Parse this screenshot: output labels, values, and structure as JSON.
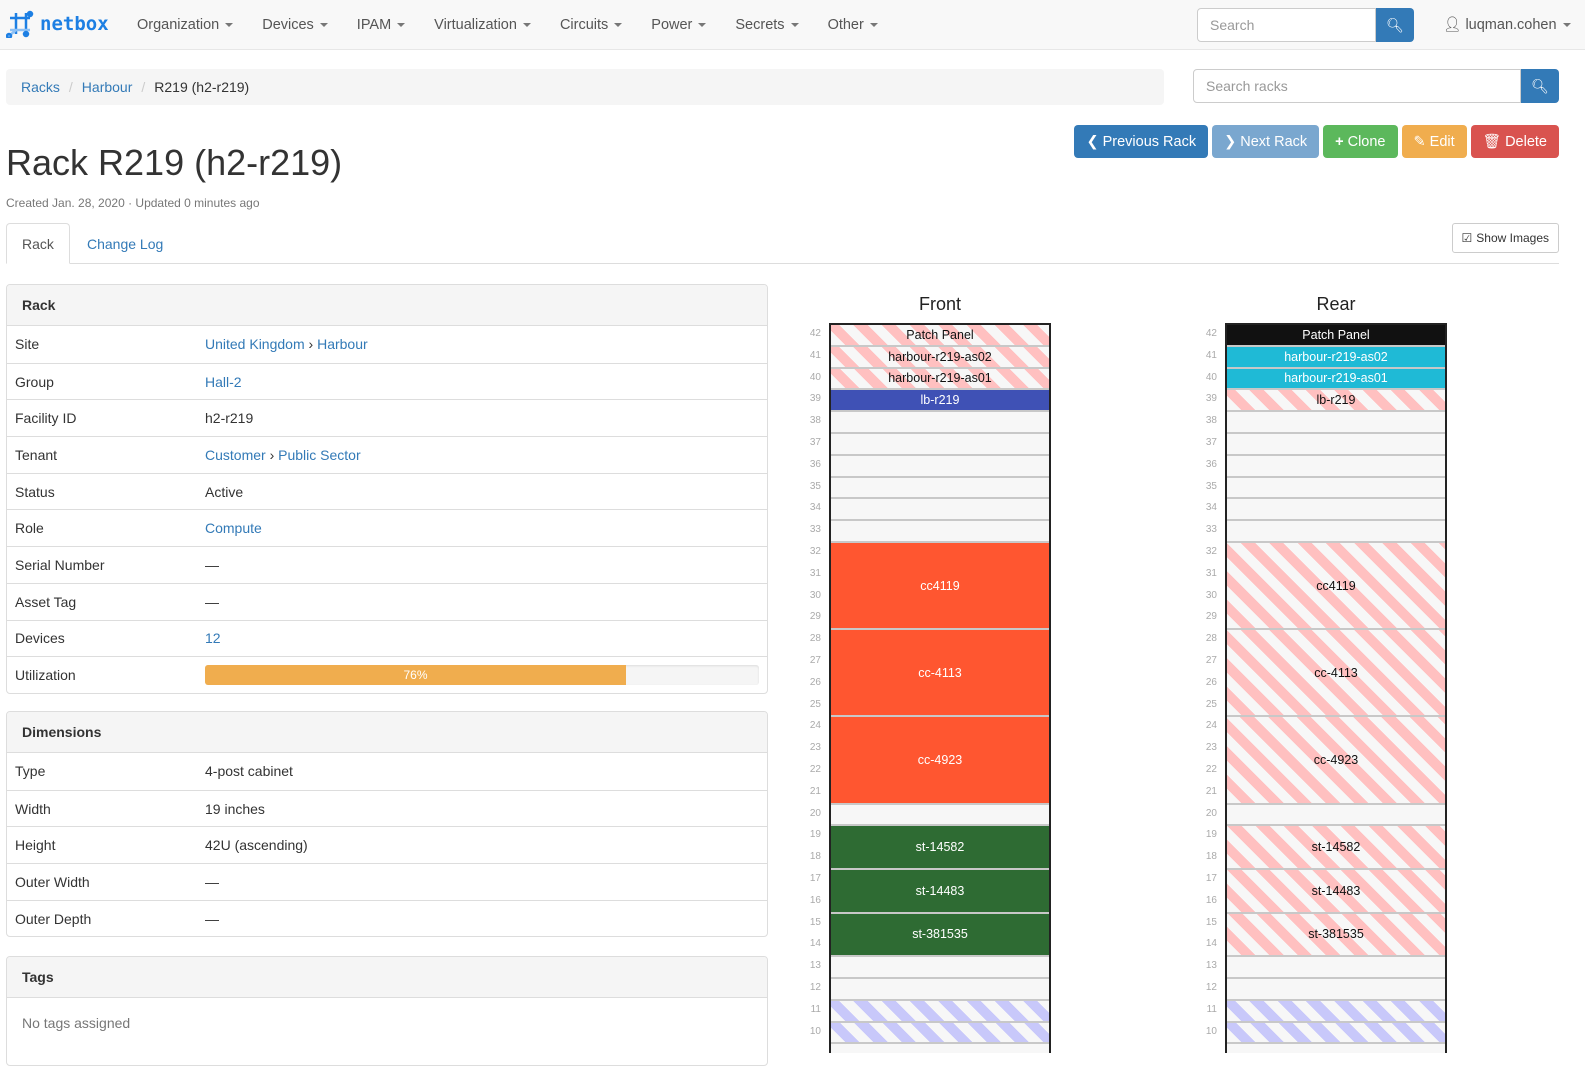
{
  "nav": {
    "brand": "netbox",
    "menu": [
      "Organization",
      "Devices",
      "IPAM",
      "Virtualization",
      "Circuits",
      "Power",
      "Secrets",
      "Other"
    ],
    "search_placeholder": "Search",
    "user": "luqman.cohen"
  },
  "breadcrumb": [
    "Racks",
    "Harbour",
    "R219 (h2-r219)"
  ],
  "rack_search_placeholder": "Search racks",
  "title": "Rack R219 (h2-r219)",
  "meta": "Created Jan. 28, 2020 · Updated 0 minutes ago",
  "buttons": {
    "prev": "Previous Rack",
    "next": "Next Rack",
    "clone": "Clone",
    "edit": "Edit",
    "delete": "Delete"
  },
  "tabs": [
    "Rack",
    "Change Log"
  ],
  "show_images": "Show Images",
  "rack_panel": {
    "title": "Rack",
    "rows": [
      {
        "k": "Site",
        "v": "United Kingdom",
        "v2": "Harbour"
      },
      {
        "k": "Group",
        "v": "Hall-2"
      },
      {
        "k": "Facility ID",
        "v": "h2-r219"
      },
      {
        "k": "Tenant",
        "v": "Customer",
        "v2": "Public Sector"
      },
      {
        "k": "Status",
        "v": "Active"
      },
      {
        "k": "Role",
        "v": "Compute"
      },
      {
        "k": "Serial Number",
        "v": "—"
      },
      {
        "k": "Asset Tag",
        "v": "—"
      },
      {
        "k": "Devices",
        "v": "12"
      },
      {
        "k": "Utilization",
        "v": "76%",
        "percent": 76
      }
    ]
  },
  "dimensions": {
    "title": "Dimensions",
    "rows": [
      {
        "k": "Type",
        "v": "4-post cabinet"
      },
      {
        "k": "Width",
        "v": "19 inches"
      },
      {
        "k": "Height",
        "v": "42U (ascending)"
      },
      {
        "k": "Outer Width",
        "v": "—"
      },
      {
        "k": "Outer Depth",
        "v": "—"
      }
    ]
  },
  "tags": {
    "title": "Tags",
    "empty": "No tags assigned"
  },
  "colors": {
    "primary": "#337ab7",
    "next": "#7aa7cf",
    "success": "#5cb85c",
    "warning": "#f0ad4e",
    "danger": "#d9534f"
  },
  "elevations": [
    {
      "title": "Front",
      "devices": [
        {
          "name": "Patch Panel",
          "top": 42,
          "h": 1,
          "style": "stripe-r"
        },
        {
          "name": "harbour-r219-as02",
          "top": 41,
          "h": 1,
          "style": "stripe-r"
        },
        {
          "name": "harbour-r219-as01",
          "top": 40,
          "h": 1,
          "style": "stripe-r"
        },
        {
          "name": "lb-r219",
          "top": 39,
          "h": 1,
          "color": "#3f51b5"
        },
        {
          "name": "cc4119",
          "top": 32,
          "h": 4,
          "color": "#ff5630"
        },
        {
          "name": "cc-4113",
          "top": 28,
          "h": 4,
          "color": "#ff5630"
        },
        {
          "name": "cc-4923",
          "top": 24,
          "h": 4,
          "color": "#ff5630"
        },
        {
          "name": "st-14582",
          "top": 19,
          "h": 2,
          "color": "#2e6b33"
        },
        {
          "name": "st-14483",
          "top": 17,
          "h": 2,
          "color": "#2e6b33"
        },
        {
          "name": "st-381535",
          "top": 15,
          "h": 2,
          "color": "#2e6b33"
        },
        {
          "name": "",
          "top": 11,
          "h": 1,
          "style": "stripe-b"
        },
        {
          "name": "",
          "top": 10,
          "h": 1,
          "style": "stripe-b"
        }
      ]
    },
    {
      "title": "Rear",
      "devices": [
        {
          "name": "Patch Panel",
          "top": 42,
          "h": 1,
          "color": "#111111"
        },
        {
          "name": "harbour-r219-as02",
          "top": 41,
          "h": 1,
          "color": "#1fbad6"
        },
        {
          "name": "harbour-r219-as01",
          "top": 40,
          "h": 1,
          "color": "#1fbad6"
        },
        {
          "name": "lb-r219",
          "top": 39,
          "h": 1,
          "style": "stripe-r"
        },
        {
          "name": "cc4119",
          "top": 32,
          "h": 4,
          "style": "stripe-r"
        },
        {
          "name": "cc-4113",
          "top": 28,
          "h": 4,
          "style": "stripe-r"
        },
        {
          "name": "cc-4923",
          "top": 24,
          "h": 4,
          "style": "stripe-r"
        },
        {
          "name": "st-14582",
          "top": 19,
          "h": 2,
          "style": "stripe-r"
        },
        {
          "name": "st-14483",
          "top": 17,
          "h": 2,
          "style": "stripe-r"
        },
        {
          "name": "st-381535",
          "top": 15,
          "h": 2,
          "style": "stripe-r"
        },
        {
          "name": "",
          "top": 11,
          "h": 1,
          "style": "stripe-b"
        },
        {
          "name": "",
          "top": 10,
          "h": 1,
          "style": "stripe-b"
        }
      ]
    }
  ]
}
